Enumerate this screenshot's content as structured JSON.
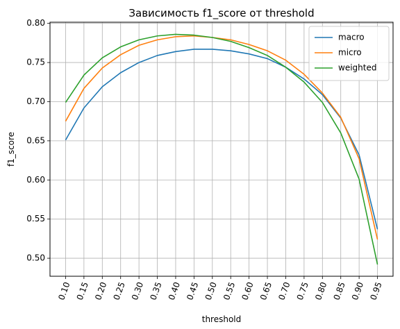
{
  "chart_data": {
    "type": "line",
    "title": "Зависимость f1_score от threshold",
    "xlabel": "threshold",
    "ylabel": "f1_score",
    "x": [
      0.1,
      0.15,
      0.2,
      0.25,
      0.3,
      0.35,
      0.4,
      0.45,
      0.5,
      0.55,
      0.6,
      0.65,
      0.7,
      0.75,
      0.8,
      0.85,
      0.9,
      0.95
    ],
    "x_tick_labels": [
      "0.10",
      "0.15",
      "0.20",
      "0.25",
      "0.30",
      "0.35",
      "0.40",
      "0.45",
      "0.50",
      "0.55",
      "0.60",
      "0.65",
      "0.70",
      "0.75",
      "0.80",
      "0.85",
      "0.90",
      "0.95"
    ],
    "x_tick_rotation_deg": 70,
    "y_ticks": [
      0.5,
      0.55,
      0.6,
      0.65,
      0.7,
      0.75,
      0.8
    ],
    "y_tick_labels": [
      "0.50",
      "0.55",
      "0.60",
      "0.65",
      "0.70",
      "0.75",
      "0.80"
    ],
    "xlim": [
      0.0575,
      0.9925
    ],
    "ylim": [
      0.477,
      0.8015
    ],
    "grid": true,
    "legend_position": "top-right",
    "series": [
      {
        "name": "macro",
        "color": "#1f77b4",
        "values": [
          0.651,
          0.692,
          0.719,
          0.737,
          0.75,
          0.759,
          0.764,
          0.767,
          0.767,
          0.765,
          0.761,
          0.755,
          0.744,
          0.729,
          0.709,
          0.679,
          0.632,
          0.537
        ]
      },
      {
        "name": "micro",
        "color": "#ff7f0e",
        "values": [
          0.675,
          0.717,
          0.743,
          0.76,
          0.772,
          0.779,
          0.783,
          0.784,
          0.782,
          0.779,
          0.773,
          0.765,
          0.753,
          0.735,
          0.711,
          0.68,
          0.627,
          0.524
        ]
      },
      {
        "name": "weighted",
        "color": "#2ca02c",
        "values": [
          0.699,
          0.734,
          0.756,
          0.77,
          0.779,
          0.784,
          0.786,
          0.785,
          0.782,
          0.777,
          0.769,
          0.759,
          0.744,
          0.725,
          0.699,
          0.66,
          0.601,
          0.492
        ]
      }
    ]
  }
}
